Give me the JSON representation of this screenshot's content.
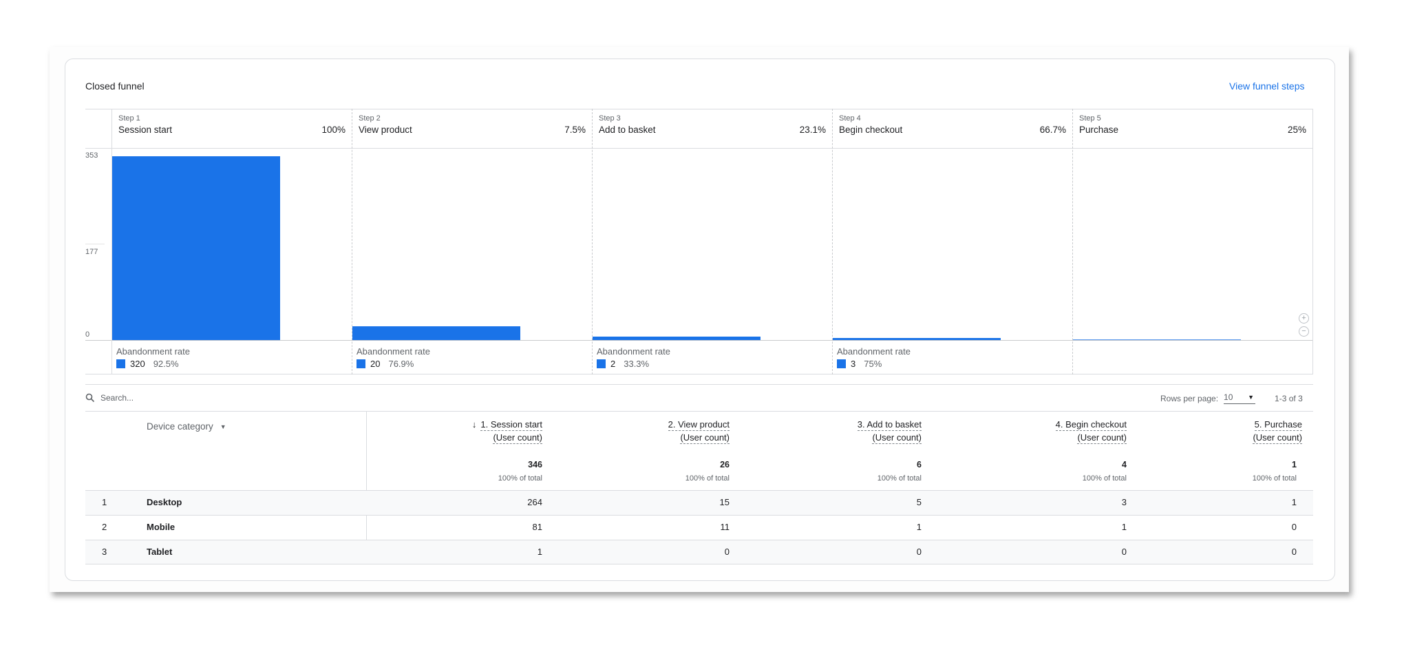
{
  "header": {
    "title": "Closed funnel",
    "view_steps_link": "View funnel steps"
  },
  "chart_data": {
    "type": "bar",
    "title": "Closed funnel",
    "ylim": [
      0,
      353
    ],
    "yticks": [
      "353",
      "177",
      "0"
    ],
    "categories": [
      "Session start",
      "View product",
      "Add to basket",
      "Begin checkout",
      "Purchase"
    ],
    "steps": [
      {
        "step_label": "Step 1",
        "name": "Session start",
        "pct": "100%",
        "value": 346,
        "abandon_count": "320",
        "abandon_pct": "92.5%"
      },
      {
        "step_label": "Step 2",
        "name": "View product",
        "pct": "7.5%",
        "value": 26,
        "abandon_count": "20",
        "abandon_pct": "76.9%"
      },
      {
        "step_label": "Step 3",
        "name": "Add to basket",
        "pct": "23.1%",
        "value": 6,
        "abandon_count": "2",
        "abandon_pct": "33.3%"
      },
      {
        "step_label": "Step 4",
        "name": "Begin checkout",
        "pct": "66.7%",
        "value": 4,
        "abandon_count": "3",
        "abandon_pct": "75%"
      },
      {
        "step_label": "Step 5",
        "name": "Purchase",
        "pct": "25%",
        "value": 1
      }
    ],
    "abandonment_label": "Abandonment rate",
    "bar_color": "#1a73e8"
  },
  "table": {
    "search_placeholder": "Search...",
    "rows_per_page_label": "Rows per page:",
    "rows_per_page_value": "10",
    "pagination": "1-3 of 3",
    "dimension_header": "Device category",
    "columns": [
      {
        "line1": "1. Session start",
        "line2": "(User count)",
        "total": "346",
        "total_sub": "100% of total"
      },
      {
        "line1": "2. View product",
        "line2": "(User count)",
        "total": "26",
        "total_sub": "100% of total"
      },
      {
        "line1": "3. Add to basket",
        "line2": "(User count)",
        "total": "6",
        "total_sub": "100% of total"
      },
      {
        "line1": "4. Begin checkout",
        "line2": "(User count)",
        "total": "4",
        "total_sub": "100% of total"
      },
      {
        "line1": "5. Purchase",
        "line2": "(User count)",
        "total": "1",
        "total_sub": "100% of total"
      }
    ],
    "rows": [
      {
        "index": "1",
        "device": "Desktop",
        "values": [
          "264",
          "15",
          "5",
          "3",
          "1"
        ]
      },
      {
        "index": "2",
        "device": "Mobile",
        "values": [
          "81",
          "11",
          "1",
          "1",
          "0"
        ]
      },
      {
        "index": "3",
        "device": "Tablet",
        "values": [
          "1",
          "0",
          "0",
          "0",
          "0"
        ]
      }
    ]
  }
}
